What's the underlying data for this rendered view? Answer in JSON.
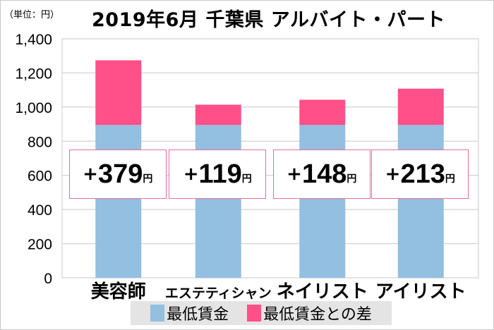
{
  "unit_label": "（単位：円）",
  "chart_data": {
    "type": "bar",
    "stacked": true,
    "title": "2019年6月 千葉県 アルバイト・パート",
    "categories": [
      "美容師",
      "エステティシャン",
      "ネイリスト",
      "アイリスト"
    ],
    "series": [
      {
        "name": "最低賃金",
        "values": [
          895,
          895,
          895,
          895
        ],
        "color": "#93bfe0"
      },
      {
        "name": "最低賃金との差",
        "values": [
          379,
          119,
          148,
          213
        ],
        "color": "#ff5089"
      }
    ],
    "ylim": [
      0,
      1400
    ],
    "yticks": [
      "0",
      "200",
      "400",
      "600",
      "800",
      "1,000",
      "1,200",
      "1,400"
    ],
    "ytick_values": [
      0,
      200,
      400,
      600,
      800,
      1000,
      1200,
      1400
    ],
    "grid": true,
    "legend_placement": "bottom",
    "annotations": [
      {
        "plus": "+",
        "value": "379",
        "unit": "円"
      },
      {
        "plus": "+",
        "value": "119",
        "unit": "円"
      },
      {
        "plus": "+",
        "value": "148",
        "unit": "円"
      },
      {
        "plus": "+",
        "value": "213",
        "unit": "円"
      }
    ]
  }
}
